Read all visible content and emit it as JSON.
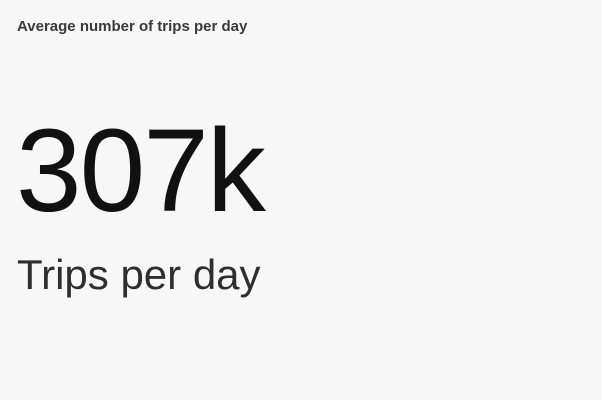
{
  "card": {
    "title": "Average number of trips per day",
    "value": "307k",
    "label": "Trips per day"
  },
  "colors": {
    "background": "#f7f7f7",
    "title": "#3a3a3a",
    "value": "#111111",
    "label": "#2e2e2e"
  }
}
